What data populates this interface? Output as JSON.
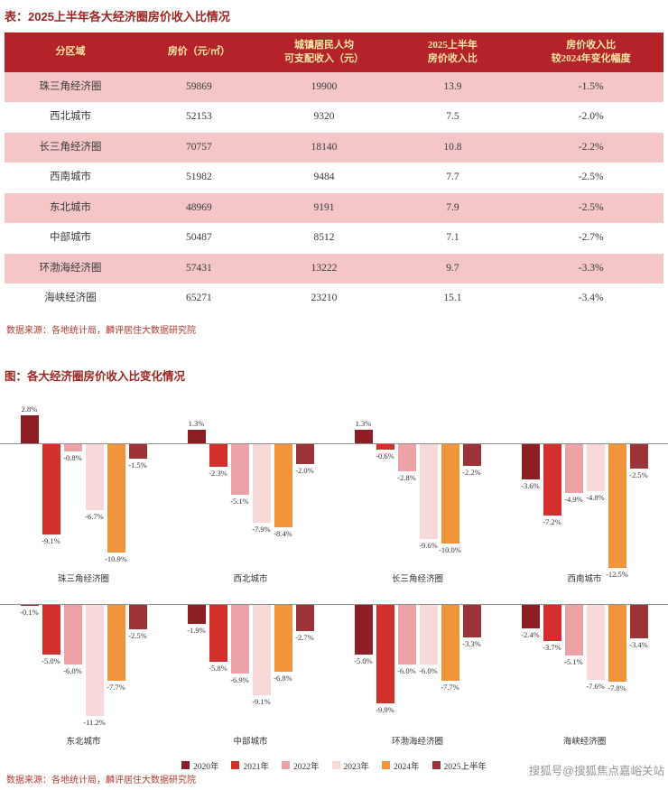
{
  "page": {
    "table_title": "表：2025上半年各大经济圈房价收入比情况",
    "chart_title": "图：各大经济圈房价收入比变化情况",
    "source_note": "数据来源：各地统计局，麟评居住大数据研究院",
    "watermark": "搜狐号@搜狐焦点嘉峪关站"
  },
  "colors": {
    "header_bg": "#b4232a",
    "header_text": "#ffe9a8",
    "row_alt_pink": "#f4c6c8",
    "accent_title": "#9e2420",
    "source_text": "#ad3a32"
  },
  "table": {
    "headers": [
      "分区域",
      "房价（元/㎡）",
      "城镇居民人均\n可支配收入（元）",
      "2025上半年\n房价收入比",
      "房价收入比\n较2024年变化幅度"
    ],
    "rows": [
      [
        "珠三角经济圈",
        "59869",
        "19900",
        "13.9",
        "-1.5%"
      ],
      [
        "西北城市",
        "52153",
        "9320",
        "7.5",
        "-2.0%"
      ],
      [
        "长三角经济圈",
        "70757",
        "18140",
        "10.8",
        "-2.2%"
      ],
      [
        "西南城市",
        "51982",
        "9484",
        "7.7",
        "-2.5%"
      ],
      [
        "东北城市",
        "48969",
        "9191",
        "7.9",
        "-2.5%"
      ],
      [
        "中部城市",
        "50487",
        "8512",
        "7.1",
        "-2.7%"
      ],
      [
        "环渤海经济圈",
        "57431",
        "13222",
        "9.7",
        "-3.3%"
      ],
      [
        "海峡经济圈",
        "65271",
        "23210",
        "15.1",
        "-3.4%"
      ]
    ]
  },
  "chart_data": {
    "type": "bar",
    "title": "图：各大经济圈房价收入比变化情况",
    "unit": "%",
    "categories": [
      "珠三角经济圈",
      "西北城市",
      "长三角经济圈",
      "西南城市",
      "东北城市",
      "中部城市",
      "环渤海经济圈",
      "海峡经济圈"
    ],
    "series": [
      {
        "name": "2020年",
        "color": "#8e1e26",
        "values": [
          2.8,
          1.3,
          1.3,
          -3.6,
          -0.1,
          -1.9,
          -5.0,
          -2.4
        ]
      },
      {
        "name": "2021年",
        "color": "#d2302c",
        "values": [
          -9.1,
          -2.3,
          -0.6,
          -7.2,
          -5.0,
          -5.8,
          -9.9,
          -3.7
        ]
      },
      {
        "name": "2022年",
        "color": "#eda2a7",
        "values": [
          -0.8,
          -5.1,
          -2.8,
          -4.9,
          -6.0,
          -6.9,
          -6.0,
          -5.1
        ]
      },
      {
        "name": "2023年",
        "color": "#f8d9da",
        "values": [
          -6.7,
          -7.9,
          -9.6,
          -4.8,
          -11.2,
          -9.1,
          -6.0,
          -7.6
        ]
      },
      {
        "name": "2024年",
        "color": "#f0953c",
        "values": [
          -10.9,
          -8.4,
          -10.0,
          -12.5,
          -7.7,
          -6.8,
          -7.7,
          -7.8
        ]
      },
      {
        "name": "2025上半年",
        "color": "#9b3338",
        "values": [
          -1.5,
          -2.0,
          -2.2,
          -2.5,
          -2.5,
          -2.7,
          -3.3,
          -3.4
        ]
      }
    ],
    "layout": {
      "rows": 2,
      "cols": 4,
      "legend": "bottom",
      "grid": false,
      "zero_axis_line": true
    }
  }
}
